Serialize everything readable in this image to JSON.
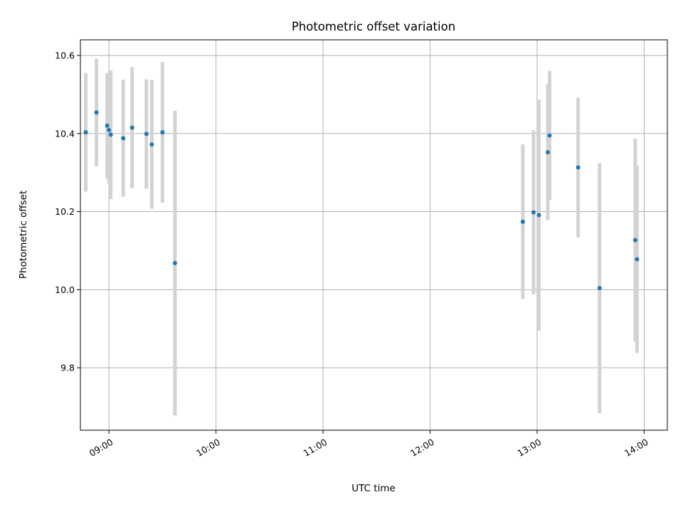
{
  "chart_data": {
    "type": "scatter",
    "title": "Photometric offset variation",
    "xlabel": "UTC time",
    "ylabel": "Photometric offset",
    "x_ticks": [
      "09:00",
      "10:00",
      "11:00",
      "12:00",
      "13:00",
      "14:00"
    ],
    "y_ticks": [
      "9.8",
      "10.0",
      "10.2",
      "10.4",
      "10.6"
    ],
    "xlim": [
      "08:44",
      "14:13"
    ],
    "ylim": [
      9.64,
      10.64
    ],
    "grid": true,
    "legend": "none",
    "colors": {
      "points": "#1f77b4",
      "error_bars": "#d3d3d3",
      "grid": "#b0b0b0"
    },
    "series": [
      {
        "points": [
          {
            "x": "08:47",
            "y": 10.403,
            "err": 0.152
          },
          {
            "x": "08:53",
            "y": 10.454,
            "err": 0.138
          },
          {
            "x": "08:59",
            "y": 10.42,
            "err": 0.135
          },
          {
            "x": "09:00",
            "y": 10.409,
            "err": 0.137
          },
          {
            "x": "09:01",
            "y": 10.397,
            "err": 0.165
          },
          {
            "x": "09:08",
            "y": 10.388,
            "err": 0.15
          },
          {
            "x": "09:13",
            "y": 10.415,
            "err": 0.155
          },
          {
            "x": "09:21",
            "y": 10.399,
            "err": 0.14
          },
          {
            "x": "09:24",
            "y": 10.372,
            "err": 0.165
          },
          {
            "x": "09:30",
            "y": 10.403,
            "err": 0.18
          },
          {
            "x": "09:37",
            "y": 10.068,
            "err": 0.39
          },
          {
            "x": "12:52",
            "y": 10.174,
            "err": 0.198
          },
          {
            "x": "12:58",
            "y": 10.198,
            "err": 0.21
          },
          {
            "x": "13:01",
            "y": 10.191,
            "err": 0.296
          },
          {
            "x": "13:06",
            "y": 10.352,
            "err": 0.174
          },
          {
            "x": "13:07",
            "y": 10.395,
            "err": 0.165
          },
          {
            "x": "13:23",
            "y": 10.313,
            "err": 0.179
          },
          {
            "x": "13:35",
            "y": 10.004,
            "err": 0.32
          },
          {
            "x": "13:55",
            "y": 10.127,
            "err": 0.26
          },
          {
            "x": "13:56",
            "y": 10.078,
            "err": 0.24
          }
        ]
      }
    ]
  }
}
